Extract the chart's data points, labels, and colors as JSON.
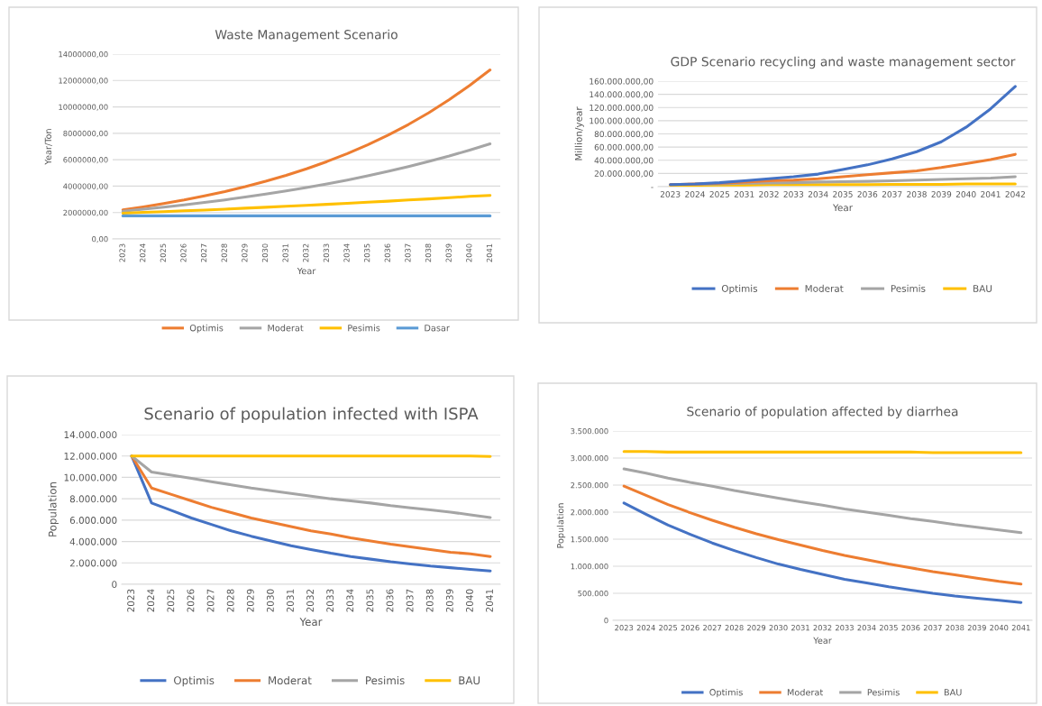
{
  "chart_data": [
    {
      "type": "line",
      "title": "Waste Management Scenario",
      "xlabel": "Year",
      "ylabel": "Year/Ton",
      "categories": [
        "2023",
        "2024",
        "2025",
        "2026",
        "2027",
        "2028",
        "2029",
        "2030",
        "2031",
        "2032",
        "2033",
        "2034",
        "2035",
        "2036",
        "2037",
        "2038",
        "2039",
        "2040",
        "2041"
      ],
      "series": [
        {
          "name": "Optimis",
          "color": "#ed7d31",
          "values": [
            2200000,
            2430000,
            2680000,
            2950000,
            3260000,
            3590000,
            3960000,
            4370000,
            4820000,
            5310000,
            5860000,
            6460000,
            7130000,
            7860000,
            8670000,
            9560000,
            10550000,
            11630000,
            12800000
          ]
        },
        {
          "name": "Moderat",
          "color": "#a5a5a5",
          "values": [
            2100000,
            2250000,
            2410000,
            2580000,
            2760000,
            2960000,
            3170000,
            3390000,
            3630000,
            3890000,
            4170000,
            4460000,
            4780000,
            5120000,
            5480000,
            5870000,
            6280000,
            6730000,
            7200000
          ]
        },
        {
          "name": "Pesimis",
          "color": "#ffc000",
          "values": [
            1950000,
            2010000,
            2070000,
            2130000,
            2190000,
            2260000,
            2330000,
            2400000,
            2470000,
            2540000,
            2620000,
            2700000,
            2780000,
            2860000,
            2950000,
            3030000,
            3120000,
            3220000,
            3300000
          ]
        },
        {
          "name": "Dasar",
          "color": "#5b9bd5",
          "values": [
            1750000,
            1750000,
            1750000,
            1750000,
            1750000,
            1750000,
            1750000,
            1750000,
            1750000,
            1750000,
            1750000,
            1750000,
            1750000,
            1750000,
            1750000,
            1750000,
            1750000,
            1750000,
            1750000
          ]
        }
      ],
      "ylim": [
        0,
        14000000
      ],
      "yticks": [
        {
          "value": 0,
          "label": "0,00"
        },
        {
          "value": 2000000,
          "label": "2000000,00"
        },
        {
          "value": 4000000,
          "label": "4000000,00"
        },
        {
          "value": 6000000,
          "label": "6000000,00"
        },
        {
          "value": 8000000,
          "label": "8000000,00"
        },
        {
          "value": 10000000,
          "label": "10000000,00"
        },
        {
          "value": 12000000,
          "label": "12000000,00"
        },
        {
          "value": 14000000,
          "label": "14000000,00"
        }
      ],
      "grid": "y",
      "legend": "bottom",
      "marker": "none",
      "line_style": "solid"
    },
    {
      "type": "line",
      "title": "GDP Scenario recycling and waste management sector",
      "xlabel": "Year",
      "ylabel": "Million/year",
      "categories": [
        "2023",
        "2024",
        "2025",
        "2031",
        "2032",
        "2033",
        "2034",
        "2035",
        "2036",
        "2037",
        "2038",
        "2039",
        "2040",
        "2041",
        "2042"
      ],
      "series": [
        {
          "name": "Optimis",
          "color": "#4472c4",
          "values": [
            3000000,
            4000000,
            6000000,
            9000000,
            12000000,
            15000000,
            19000000,
            26000000,
            33000000,
            42000000,
            53000000,
            68000000,
            90000000,
            118000000,
            152000000
          ]
        },
        {
          "name": "Moderat",
          "color": "#ed7d31",
          "values": [
            3000000,
            4000000,
            5000000,
            7000000,
            9000000,
            10000000,
            12000000,
            15000000,
            18000000,
            21000000,
            24000000,
            29000000,
            35000000,
            41000000,
            49000000
          ]
        },
        {
          "name": "Pesimis",
          "color": "#a5a5a5",
          "values": [
            3000000,
            3500000,
            4000000,
            5000000,
            5500000,
            6000000,
            7000000,
            7500000,
            8000000,
            9000000,
            10000000,
            11000000,
            12000000,
            13000000,
            15000000
          ]
        },
        {
          "name": "BAU",
          "color": "#ffc000",
          "values": [
            2000000,
            2000000,
            2500000,
            2500000,
            3000000,
            3000000,
            3000000,
            3000000,
            3000000,
            3500000,
            3500000,
            3500000,
            4000000,
            4000000,
            4000000
          ]
        }
      ],
      "ylim": [
        0,
        160000000
      ],
      "yticks": [
        {
          "value": 0,
          "label": "-"
        },
        {
          "value": 20000000,
          "label": "20.000.000,00"
        },
        {
          "value": 40000000,
          "label": "40.000.000,00"
        },
        {
          "value": 60000000,
          "label": "60.000.000,00"
        },
        {
          "value": 80000000,
          "label": "80.000.000,00"
        },
        {
          "value": 100000000,
          "label": "100.000.000,00"
        },
        {
          "value": 120000000,
          "label": "120.000.000,00"
        },
        {
          "value": 140000000,
          "label": "140.000.000,00"
        },
        {
          "value": 160000000,
          "label": "160.000.000,00"
        }
      ],
      "grid": "y",
      "legend": "bottom",
      "marker": "none",
      "line_style": "solid"
    },
    {
      "type": "line",
      "title": "Scenario of population infected with ISPA",
      "xlabel": "Year",
      "ylabel": "Population",
      "categories": [
        "2023",
        "2024",
        "2025",
        "2026",
        "2027",
        "2028",
        "2029",
        "2030",
        "2031",
        "2032",
        "2033",
        "2034",
        "2035",
        "2036",
        "2037",
        "2038",
        "2039",
        "2040",
        "2041"
      ],
      "series": [
        {
          "name": "Optimis",
          "color": "#4472c4",
          "values": [
            12000000,
            7600000,
            6900000,
            6200000,
            5600000,
            5000000,
            4500000,
            4050000,
            3600000,
            3250000,
            2900000,
            2600000,
            2350000,
            2100000,
            1900000,
            1700000,
            1550000,
            1400000,
            1250000
          ]
        },
        {
          "name": "Moderat",
          "color": "#ed7d31",
          "values": [
            12000000,
            9000000,
            8400000,
            7800000,
            7200000,
            6700000,
            6200000,
            5800000,
            5400000,
            5000000,
            4700000,
            4350000,
            4050000,
            3750000,
            3500000,
            3250000,
            3000000,
            2850000,
            2600000
          ]
        },
        {
          "name": "Pesimis",
          "color": "#a5a5a5",
          "values": [
            12000000,
            10500000,
            10200000,
            9900000,
            9600000,
            9300000,
            9000000,
            8750000,
            8500000,
            8250000,
            8000000,
            7800000,
            7600000,
            7350000,
            7150000,
            6950000,
            6750000,
            6500000,
            6250000
          ]
        },
        {
          "name": "BAU",
          "color": "#ffc000",
          "values": [
            12000000,
            12000000,
            12000000,
            12000000,
            12000000,
            12000000,
            12000000,
            12000000,
            12000000,
            12000000,
            12000000,
            12000000,
            12000000,
            12000000,
            12000000,
            12000000,
            12000000,
            12000000,
            11950000
          ]
        }
      ],
      "ylim": [
        0,
        14000000
      ],
      "yticks": [
        {
          "value": 0,
          "label": "0"
        },
        {
          "value": 2000000,
          "label": "2.000.000"
        },
        {
          "value": 4000000,
          "label": "4.000.000"
        },
        {
          "value": 6000000,
          "label": "6.000.000"
        },
        {
          "value": 8000000,
          "label": "8.000.000"
        },
        {
          "value": 10000000,
          "label": "10.000.000"
        },
        {
          "value": 12000000,
          "label": "12.000.000"
        },
        {
          "value": 14000000,
          "label": "14.000.000"
        }
      ],
      "grid": "y",
      "legend": "bottom",
      "marker": "none",
      "line_style": "solid"
    },
    {
      "type": "line",
      "title": "Scenario of population affected by diarrhea",
      "xlabel": "Year",
      "ylabel": "Population",
      "categories": [
        "2023",
        "2024",
        "2025",
        "2026",
        "2027",
        "2028",
        "2029",
        "2030",
        "2031",
        "2032",
        "2033",
        "2034",
        "2035",
        "2036",
        "2037",
        "2038",
        "2039",
        "2040",
        "2041"
      ],
      "series": [
        {
          "name": "Optimis",
          "color": "#4472c4",
          "values": [
            2170000,
            1960000,
            1760000,
            1590000,
            1430000,
            1290000,
            1160000,
            1040000,
            940000,
            850000,
            760000,
            690000,
            620000,
            560000,
            500000,
            450000,
            410000,
            370000,
            330000
          ]
        },
        {
          "name": "Moderat",
          "color": "#ed7d31",
          "values": [
            2480000,
            2310000,
            2140000,
            1990000,
            1850000,
            1720000,
            1600000,
            1490000,
            1390000,
            1290000,
            1200000,
            1120000,
            1040000,
            970000,
            900000,
            840000,
            780000,
            720000,
            670000
          ]
        },
        {
          "name": "Pesimis",
          "color": "#a5a5a5",
          "values": [
            2800000,
            2720000,
            2630000,
            2550000,
            2480000,
            2400000,
            2330000,
            2260000,
            2190000,
            2130000,
            2060000,
            2000000,
            1940000,
            1880000,
            1830000,
            1770000,
            1720000,
            1670000,
            1620000
          ]
        },
        {
          "name": "BAU",
          "color": "#ffc000",
          "values": [
            3120000,
            3120000,
            3110000,
            3110000,
            3110000,
            3110000,
            3110000,
            3110000,
            3110000,
            3110000,
            3110000,
            3110000,
            3110000,
            3110000,
            3100000,
            3100000,
            3100000,
            3100000,
            3100000
          ]
        }
      ],
      "ylim": [
        0,
        3500000
      ],
      "yticks": [
        {
          "value": 0,
          "label": "0"
        },
        {
          "value": 500000,
          "label": "500.000"
        },
        {
          "value": 1000000,
          "label": "1.000.000"
        },
        {
          "value": 1500000,
          "label": "1.500.000"
        },
        {
          "value": 2000000,
          "label": "2.000.000"
        },
        {
          "value": 2500000,
          "label": "2.500.000"
        },
        {
          "value": 3000000,
          "label": "3.000.000"
        },
        {
          "value": 3500000,
          "label": "3.500.000"
        }
      ],
      "grid": "y",
      "legend": "bottom",
      "marker": "none",
      "line_style": "solid"
    }
  ]
}
